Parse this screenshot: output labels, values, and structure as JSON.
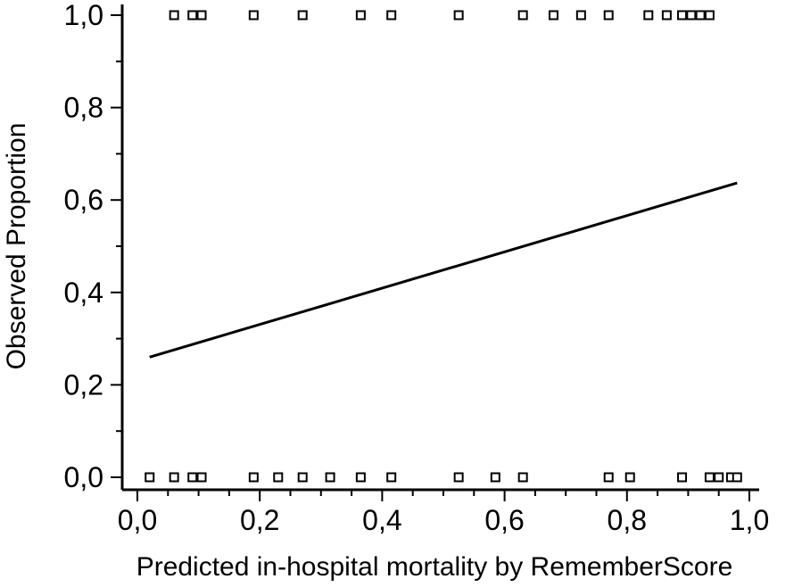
{
  "chart_data": {
    "type": "scatter",
    "xlabel": "Predicted in-hospital mortality by RememberScore",
    "ylabel": "Observed Proportion",
    "xlim": [
      0,
      1
    ],
    "ylim": [
      0,
      1
    ],
    "x_ticks": [
      0,
      0.2,
      0.4,
      0.6,
      0.8,
      1.0
    ],
    "x_tick_labels": [
      "0,0",
      "0,2",
      "0,4",
      "0,6",
      "0,8",
      "1,0"
    ],
    "y_ticks": [
      0,
      0.2,
      0.4,
      0.6,
      0.8,
      1.0
    ],
    "y_tick_labels": [
      "0,0",
      "0,2",
      "0,4",
      "0,6",
      "0,8",
      "1,0"
    ],
    "grid": false,
    "series": [
      {
        "kind": "points",
        "marker": "open-square",
        "points": [
          {
            "x": 0.06,
            "y": 1
          },
          {
            "x": 0.09,
            "y": 1
          },
          {
            "x": 0.105,
            "y": 1
          },
          {
            "x": 0.19,
            "y": 1
          },
          {
            "x": 0.27,
            "y": 1
          },
          {
            "x": 0.365,
            "y": 1
          },
          {
            "x": 0.415,
            "y": 1
          },
          {
            "x": 0.525,
            "y": 1
          },
          {
            "x": 0.63,
            "y": 1
          },
          {
            "x": 0.68,
            "y": 1
          },
          {
            "x": 0.725,
            "y": 1
          },
          {
            "x": 0.77,
            "y": 1
          },
          {
            "x": 0.835,
            "y": 1
          },
          {
            "x": 0.865,
            "y": 1
          },
          {
            "x": 0.89,
            "y": 1
          },
          {
            "x": 0.905,
            "y": 1
          },
          {
            "x": 0.92,
            "y": 1
          },
          {
            "x": 0.935,
            "y": 1
          },
          {
            "x": 0.02,
            "y": 0
          },
          {
            "x": 0.06,
            "y": 0
          },
          {
            "x": 0.09,
            "y": 0
          },
          {
            "x": 0.105,
            "y": 0
          },
          {
            "x": 0.19,
            "y": 0
          },
          {
            "x": 0.23,
            "y": 0
          },
          {
            "x": 0.27,
            "y": 0
          },
          {
            "x": 0.315,
            "y": 0
          },
          {
            "x": 0.365,
            "y": 0
          },
          {
            "x": 0.415,
            "y": 0
          },
          {
            "x": 0.525,
            "y": 0
          },
          {
            "x": 0.585,
            "y": 0
          },
          {
            "x": 0.63,
            "y": 0
          },
          {
            "x": 0.77,
            "y": 0
          },
          {
            "x": 0.805,
            "y": 0
          },
          {
            "x": 0.89,
            "y": 0
          },
          {
            "x": 0.935,
            "y": 0
          },
          {
            "x": 0.95,
            "y": 0
          },
          {
            "x": 0.97,
            "y": 0
          },
          {
            "x": 0.98,
            "y": 0
          }
        ]
      },
      {
        "kind": "line",
        "x": [
          0.02,
          0.98
        ],
        "y": [
          0.26,
          0.637
        ]
      }
    ]
  }
}
